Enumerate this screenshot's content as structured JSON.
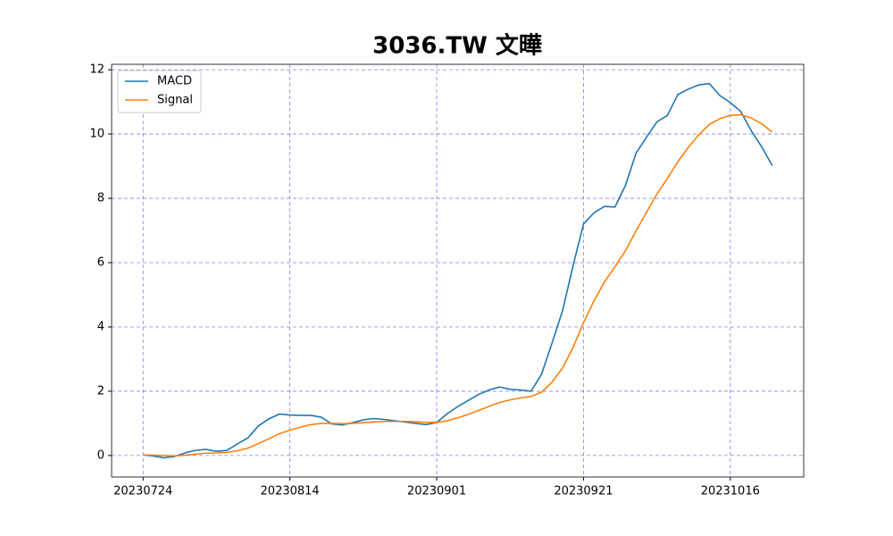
{
  "chart_data": {
    "type": "line",
    "title": "3036.TW 文曄",
    "categories": [
      "20230724",
      null,
      null,
      null,
      null,
      null,
      null,
      null,
      null,
      null,
      null,
      null,
      null,
      null,
      "20230814",
      null,
      null,
      null,
      null,
      null,
      null,
      null,
      null,
      null,
      null,
      null,
      null,
      null,
      "20230901",
      null,
      null,
      null,
      null,
      null,
      null,
      null,
      null,
      null,
      null,
      null,
      null,
      null,
      "20230921",
      null,
      null,
      null,
      null,
      null,
      null,
      null,
      null,
      null,
      null,
      null,
      null,
      null,
      "20231016",
      null,
      null,
      null,
      null
    ],
    "series": [
      {
        "name": "MACD",
        "color": "#1f77b4",
        "values": [
          0.02,
          -0.02,
          -0.07,
          -0.03,
          0.08,
          0.16,
          0.19,
          0.13,
          0.16,
          0.36,
          0.55,
          0.92,
          1.14,
          1.29,
          1.26,
          1.25,
          1.25,
          1.19,
          0.98,
          0.95,
          1.02,
          1.11,
          1.15,
          1.12,
          1.08,
          1.04,
          1.0,
          0.96,
          1.03,
          1.3,
          1.52,
          1.71,
          1.9,
          2.04,
          2.13,
          2.06,
          2.04,
          2.0,
          2.53,
          3.5,
          4.5,
          5.9,
          7.2,
          7.55,
          7.75,
          7.73,
          8.4,
          9.4,
          9.9,
          10.38,
          10.58,
          11.23,
          11.4,
          11.53,
          11.57,
          11.2,
          10.98,
          10.7,
          10.1,
          9.6,
          9.02
        ]
      },
      {
        "name": "Signal",
        "color": "#ff7f0e",
        "values": [
          0.02,
          0.01,
          0.0,
          -0.01,
          0.01,
          0.04,
          0.07,
          0.08,
          0.1,
          0.15,
          0.23,
          0.37,
          0.52,
          0.68,
          0.79,
          0.88,
          0.96,
          1.0,
          1.0,
          0.99,
          1.0,
          1.02,
          1.04,
          1.06,
          1.06,
          1.06,
          1.05,
          1.03,
          1.03,
          1.08,
          1.17,
          1.28,
          1.4,
          1.53,
          1.65,
          1.73,
          1.79,
          1.84,
          1.97,
          2.28,
          2.72,
          3.36,
          4.13,
          4.81,
          5.4,
          5.87,
          6.37,
          6.98,
          7.56,
          8.13,
          8.62,
          9.14,
          9.59,
          9.98,
          10.3,
          10.48,
          10.58,
          10.6,
          10.5,
          10.32,
          10.06
        ]
      }
    ],
    "ylim": [
      -0.67,
      12.17
    ],
    "yticks": [
      0,
      2,
      4,
      6,
      8,
      10,
      12
    ],
    "grid": true,
    "legend": "upper left"
  }
}
